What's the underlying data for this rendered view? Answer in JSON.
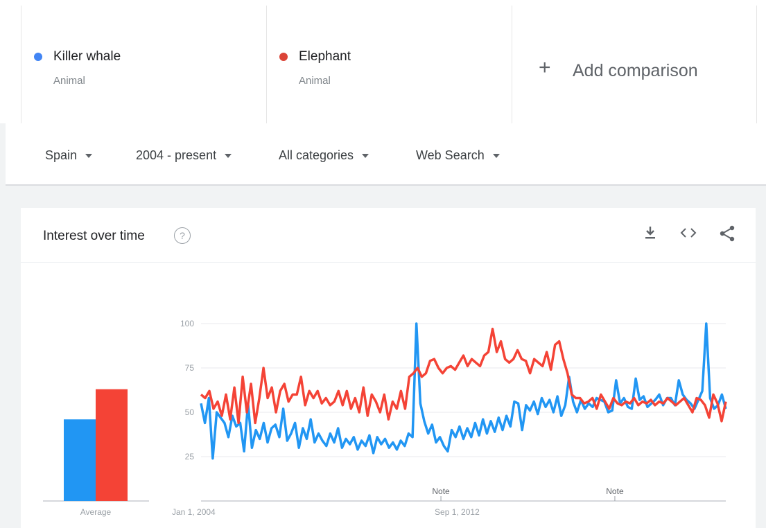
{
  "terms": [
    {
      "name": "Killer whale",
      "type": "Animal",
      "color": "#4285f4"
    },
    {
      "name": "Elephant",
      "type": "Animal",
      "color": "#db4437"
    }
  ],
  "add_comparison": {
    "plus": "+",
    "label": "Add comparison"
  },
  "filters": [
    {
      "label": "Spain"
    },
    {
      "label": "2004 - present"
    },
    {
      "label": "All categories"
    },
    {
      "label": "Web Search"
    }
  ],
  "card": {
    "title": "Interest over time",
    "help": "?",
    "tools": {
      "download_icon": "download-icon",
      "embed_icon": "code-icon",
      "share_icon": "share-icon"
    }
  },
  "chart_data": {
    "type": "line",
    "yticks": [
      25,
      50,
      75,
      100
    ],
    "ylim": [
      0,
      100
    ],
    "xticks": [
      "Jan 1, 2004",
      "Sep 1, 2012"
    ],
    "xlim_years": [
      2004,
      2021.5
    ],
    "notes": [
      {
        "label": "Note",
        "x_year": 2012.0
      },
      {
        "label": "Note",
        "x_year": 2017.8
      }
    ],
    "average": {
      "label": "Average",
      "values": [
        46,
        63
      ]
    },
    "series": [
      {
        "name": "Killer whale",
        "color": "#2196f3",
        "values": [
          55,
          44,
          58,
          24,
          50,
          47,
          44,
          36,
          48,
          42,
          44,
          28,
          55,
          30,
          40,
          35,
          44,
          33,
          41,
          43,
          36,
          52,
          34,
          38,
          44,
          30,
          41,
          35,
          46,
          33,
          38,
          34,
          31,
          38,
          33,
          41,
          30,
          35,
          32,
          36,
          29,
          34,
          31,
          37,
          27,
          36,
          32,
          35,
          30,
          33,
          29,
          34,
          31,
          38,
          36,
          100,
          55,
          45,
          38,
          43,
          33,
          36,
          31,
          28,
          40,
          36,
          42,
          35,
          41,
          36,
          44,
          37,
          46,
          38,
          45,
          39,
          47,
          40,
          48,
          42,
          56,
          55,
          40,
          54,
          51,
          56,
          49,
          58,
          53,
          57,
          50,
          59,
          48,
          54,
          70,
          56,
          50,
          57,
          52,
          55,
          53,
          58,
          57,
          56,
          50,
          51,
          68,
          55,
          58,
          53,
          52,
          69,
          57,
          59,
          53,
          55,
          57,
          60,
          54,
          58,
          58,
          54,
          68,
          60,
          57,
          55,
          52,
          57,
          62,
          100,
          58,
          52,
          54,
          60,
          52
        ]
      },
      {
        "name": "Elephant",
        "color": "#f44336",
        "values": [
          60,
          58,
          62,
          52,
          56,
          48,
          60,
          46,
          64,
          44,
          70,
          50,
          66,
          44,
          58,
          75,
          58,
          64,
          50,
          62,
          66,
          56,
          60,
          60,
          70,
          54,
          62,
          58,
          62,
          55,
          58,
          54,
          56,
          62,
          54,
          62,
          52,
          58,
          50,
          64,
          48,
          60,
          56,
          50,
          60,
          46,
          56,
          52,
          62,
          52,
          70,
          72,
          75,
          70,
          72,
          79,
          80,
          75,
          72,
          75,
          76,
          74,
          78,
          82,
          76,
          80,
          78,
          76,
          82,
          84,
          97,
          84,
          90,
          80,
          78,
          80,
          85,
          80,
          79,
          72,
          80,
          78,
          76,
          84,
          74,
          88,
          90,
          80,
          72,
          60,
          58,
          58,
          55,
          56,
          58,
          52,
          60,
          56,
          52,
          58,
          55,
          54,
          56,
          55,
          58,
          54,
          56,
          55,
          57,
          54,
          56,
          55,
          58,
          56,
          54,
          56,
          58,
          54,
          50,
          58,
          57,
          54,
          47,
          60,
          55,
          45,
          56
        ]
      }
    ]
  }
}
